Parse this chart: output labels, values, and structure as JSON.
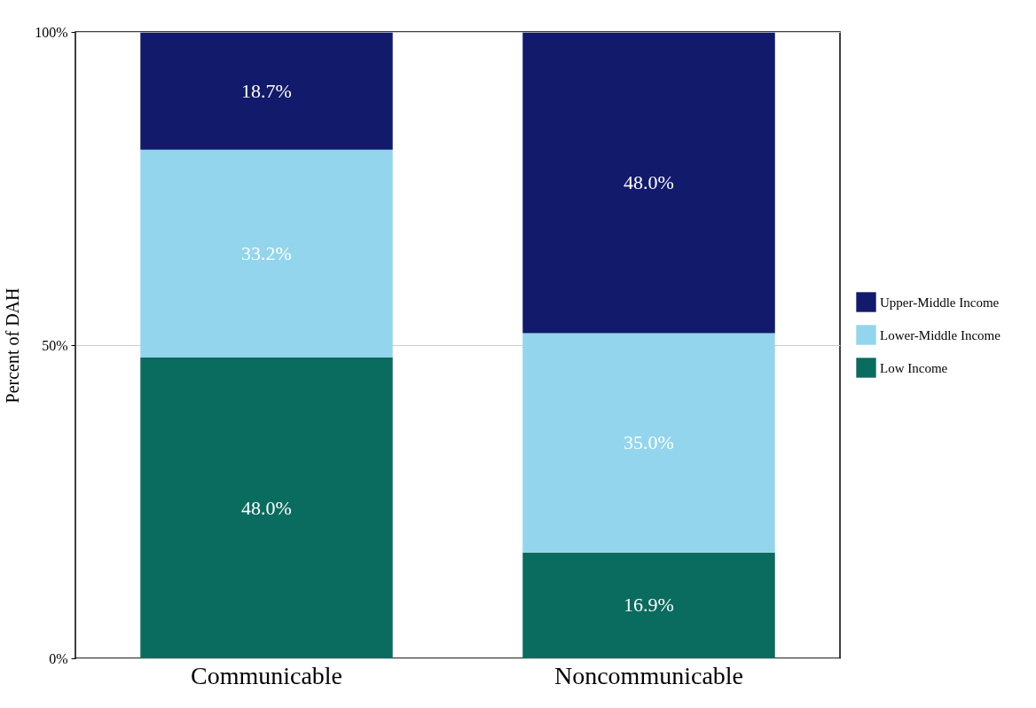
{
  "chart_data": {
    "type": "bar",
    "stacked": true,
    "ylabel": "Percent of DAH",
    "categories": [
      "Communicable",
      "Noncommunicable"
    ],
    "series": [
      {
        "name": "Low Income",
        "color": "#0a6b5f",
        "values": [
          48.0,
          16.9
        ],
        "value_labels": [
          "48.0%",
          "16.9%"
        ]
      },
      {
        "name": "Lower-Middle Income",
        "color": "#93d5ec",
        "values": [
          33.2,
          35.0
        ],
        "value_labels": [
          "33.2%",
          "35.0%"
        ]
      },
      {
        "name": "Upper-Middle Income",
        "color": "#111a6b",
        "values": [
          18.7,
          48.0
        ],
        "value_labels": [
          "18.7%",
          "48.0%"
        ]
      }
    ],
    "ylim": [
      0,
      100
    ],
    "yticks": [
      {
        "value": 0,
        "label": "0%"
      },
      {
        "value": 50,
        "label": "50%"
      },
      {
        "value": 100,
        "label": "100%"
      }
    ],
    "grid": "y",
    "legend": "right"
  }
}
